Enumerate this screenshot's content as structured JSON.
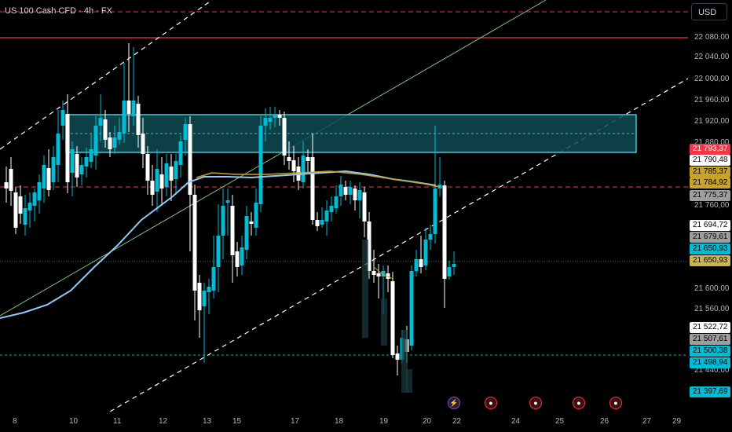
{
  "header": {
    "title": "US 100 Cash CFD · 4h · FX",
    "currency_button": "USD"
  },
  "colors": {
    "background": "#000000",
    "bull_candle": "#00bcd4",
    "bear_candle": "#ffffff",
    "zone_fill": "#0e4a52",
    "zone_border": "#4ec5d6",
    "ma_blue": "#90caf9",
    "ma_orange": "#c9a227",
    "red_line": "#f23645",
    "green_line": "#7cc47c"
  },
  "price_axis": {
    "ticks": [
      "22 080,00",
      "22 040,00",
      "22 000,00",
      "21 960,00",
      "21 920,00",
      "21 880,00",
      "21 760,00",
      "21 600,00",
      "21 560,00",
      "21 440,00"
    ],
    "labels": [
      {
        "text": "21 793,37",
        "bg": "#f23645",
        "fg": "#ffffff"
      },
      {
        "text": "21 790,48",
        "bg": "#ffffff",
        "fg": "#000000"
      },
      {
        "text": "21 785,37",
        "bg": "#c9a227",
        "fg": "#000000"
      },
      {
        "text": "21 784,92",
        "bg": "#c9a227",
        "fg": "#000000"
      },
      {
        "text": "21 775,37",
        "bg": "#9e9e9e",
        "fg": "#000000"
      },
      {
        "text": "21 694,72",
        "bg": "#ffffff",
        "fg": "#000000"
      },
      {
        "text": "21 679,61",
        "bg": "#9e9e9e",
        "fg": "#000000"
      },
      {
        "text": "21 650,93",
        "bg": "#00bcd4",
        "fg": "#000000"
      },
      {
        "text": "21 650,93",
        "bg": "#c9b458",
        "fg": "#000000"
      },
      {
        "text": "21 522,72",
        "bg": "#ffffff",
        "fg": "#000000"
      },
      {
        "text": "21 507,61",
        "bg": "#9e9e9e",
        "fg": "#000000"
      },
      {
        "text": "21 500,38",
        "bg": "#00bcd4",
        "fg": "#000000"
      },
      {
        "text": "21 498,94",
        "bg": "#00bcd4",
        "fg": "#000000"
      },
      {
        "text": "21 397,69",
        "bg": "#00bcd4",
        "fg": "#000000"
      }
    ]
  },
  "time_axis": {
    "ticks": [
      "8",
      "10",
      "11",
      "12",
      "13",
      "15",
      "17",
      "18",
      "19",
      "20",
      "22",
      "24",
      "25",
      "26",
      "27",
      "29"
    ]
  },
  "events": [
    {
      "icon": "lightning-icon",
      "glyph": "⚡"
    },
    {
      "icon": "us-flag-icon",
      "glyph": "●"
    },
    {
      "icon": "us-flag-icon",
      "glyph": "●"
    },
    {
      "icon": "us-flag-icon",
      "glyph": "●"
    },
    {
      "icon": "us-flag-icon",
      "glyph": "●"
    }
  ]
}
